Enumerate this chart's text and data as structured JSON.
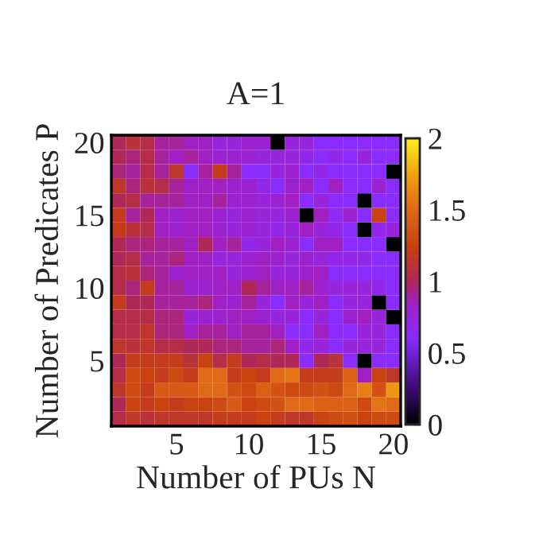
{
  "chart_data": {
    "type": "heatmap",
    "title": "A=1",
    "xlabel": "Number of PUs N",
    "ylabel": "Number of Predicates P",
    "x": [
      1,
      2,
      3,
      4,
      5,
      6,
      7,
      8,
      9,
      10,
      11,
      12,
      13,
      14,
      15,
      16,
      17,
      18,
      19,
      20
    ],
    "y": [
      20,
      19,
      18,
      17,
      16,
      15,
      14,
      13,
      12,
      11,
      10,
      9,
      8,
      7,
      6,
      5,
      4,
      3,
      2,
      1
    ],
    "xlim": [
      0.5,
      20.5
    ],
    "ylim": [
      0.5,
      20.5
    ],
    "xticks": [
      5,
      10,
      15,
      20
    ],
    "yticks": [
      5,
      10,
      15,
      20
    ],
    "clim": [
      0,
      2
    ],
    "cticks": [
      0,
      0.5,
      1,
      1.5,
      2
    ],
    "cells": [
      [
        1.0,
        1.1,
        1.05,
        0.9,
        0.9,
        0.85,
        0.85,
        0.75,
        0.75,
        0.8,
        0.8,
        0,
        0.75,
        0.75,
        0.6,
        0.6,
        0.6,
        0.6,
        0.6,
        0.6
      ],
      [
        1.0,
        0.95,
        1.05,
        0.9,
        0.85,
        0.9,
        0.85,
        0.8,
        0.8,
        0.8,
        0.75,
        0.75,
        0.75,
        0.7,
        0.6,
        0.7,
        0.6,
        0.75,
        0.6,
        0.6
      ],
      [
        0.95,
        0.9,
        1.05,
        0.9,
        1.15,
        0.6,
        0.9,
        1.2,
        0.9,
        0.6,
        0.6,
        0.75,
        0.8,
        0.6,
        0.7,
        0.6,
        0.6,
        0.6,
        0.6,
        0
      ],
      [
        1.15,
        0.95,
        1.1,
        1.05,
        0.9,
        0.85,
        0.85,
        0.85,
        0.8,
        0.8,
        0.7,
        0.6,
        0.8,
        0.85,
        0.6,
        0.85,
        0.6,
        0.6,
        0.8,
        0.6
      ],
      [
        1.0,
        1.05,
        0.9,
        0.9,
        0.9,
        0.85,
        0.85,
        0.9,
        0.8,
        0.8,
        0.75,
        0.8,
        0.85,
        0.6,
        0.75,
        0.6,
        0.6,
        0,
        0.6,
        0.6
      ],
      [
        1.2,
        0.9,
        1.0,
        0.85,
        0.8,
        0.85,
        0.85,
        0.8,
        0.75,
        0.8,
        0.75,
        0.75,
        0.8,
        0,
        0.85,
        0.65,
        0.8,
        0.6,
        1.25,
        0.6
      ],
      [
        1.2,
        1.1,
        1.05,
        0.85,
        0.8,
        0.85,
        0.85,
        0.8,
        0.75,
        0.8,
        0.75,
        0.7,
        0.75,
        0.85,
        0.75,
        0.7,
        0.6,
        0,
        0.7,
        0.75
      ],
      [
        1.0,
        0.95,
        0.95,
        0.9,
        0.9,
        0.85,
        1.0,
        0.85,
        0.9,
        0.7,
        0.75,
        0.85,
        0.8,
        0.6,
        0.85,
        0.85,
        0.6,
        0.6,
        0.6,
        0
      ],
      [
        1.0,
        1.05,
        0.9,
        0.9,
        0.95,
        0.85,
        0.85,
        0.75,
        0.75,
        0.8,
        0.85,
        0.8,
        0.75,
        0.8,
        0.75,
        0.7,
        0.7,
        0.7,
        0.6,
        0.6
      ],
      [
        1.05,
        1.1,
        0.95,
        0.9,
        0.8,
        0.85,
        0.85,
        0.85,
        0.75,
        0.8,
        0.85,
        0.75,
        0.75,
        0.8,
        0.85,
        0.6,
        0.6,
        0.6,
        0.6,
        0.6
      ],
      [
        1.05,
        0.95,
        1.2,
        0.9,
        0.9,
        0.8,
        0.8,
        0.85,
        0.85,
        1.0,
        0.9,
        0.85,
        0.85,
        0.9,
        0.8,
        0.75,
        0.75,
        0.75,
        0.7,
        0.6
      ],
      [
        1.2,
        1.0,
        1.0,
        0.9,
        0.9,
        0.9,
        0.95,
        0.85,
        0.8,
        0.9,
        0.75,
        0.6,
        0.85,
        0.75,
        0.85,
        0.6,
        0.75,
        0.75,
        0,
        0.6
      ],
      [
        1.05,
        1.05,
        1.05,
        0.95,
        0.95,
        0.75,
        0.8,
        0.8,
        0.85,
        0.85,
        0.8,
        0.75,
        0.75,
        0.6,
        0.75,
        0.6,
        0.8,
        0.85,
        0.75,
        0
      ],
      [
        1.05,
        1.05,
        1.15,
        0.95,
        0.95,
        0.85,
        0.9,
        0.9,
        0.85,
        0.9,
        0.9,
        0.85,
        0.6,
        0.6,
        0.85,
        0.6,
        0.6,
        0.75,
        0.75,
        0.6
      ],
      [
        1.15,
        1.1,
        1.15,
        1.05,
        1.05,
        1.0,
        1.0,
        0.95,
        0.95,
        0.9,
        0.9,
        0.95,
        0.85,
        0.7,
        0.75,
        0.6,
        0.75,
        0.75,
        0.75,
        0.6
      ],
      [
        1.0,
        1.2,
        1.2,
        1.2,
        1.2,
        1.1,
        1.25,
        1.05,
        1.2,
        1.0,
        1.05,
        1.0,
        1.0,
        0.6,
        1.0,
        1.1,
        0.6,
        0,
        0.6,
        0.6
      ],
      [
        1.05,
        1.3,
        1.25,
        1.2,
        1.3,
        1.2,
        1.5,
        1.5,
        1.2,
        1.25,
        1.2,
        1.5,
        1.55,
        1.2,
        1.2,
        1.2,
        1.45,
        0.85,
        1.25,
        1.15
      ],
      [
        1.15,
        1.3,
        1.2,
        1.4,
        1.4,
        1.4,
        1.5,
        1.5,
        1.35,
        1.3,
        1.45,
        1.35,
        1.3,
        1.3,
        1.35,
        1.3,
        1.5,
        1.6,
        1.35,
        1.7
      ],
      [
        1.0,
        1.25,
        1.2,
        1.25,
        1.2,
        1.25,
        1.25,
        1.3,
        1.4,
        1.25,
        1.3,
        1.35,
        1.5,
        1.5,
        1.45,
        1.45,
        1.45,
        1.3,
        1.55,
        1.5
      ],
      [
        1.05,
        1.15,
        1.1,
        1.15,
        1.15,
        1.15,
        1.15,
        1.2,
        1.2,
        1.2,
        1.25,
        1.2,
        1.15,
        1.15,
        1.25,
        1.3,
        1.35,
        1.25,
        1.3,
        1.3
      ]
    ]
  }
}
